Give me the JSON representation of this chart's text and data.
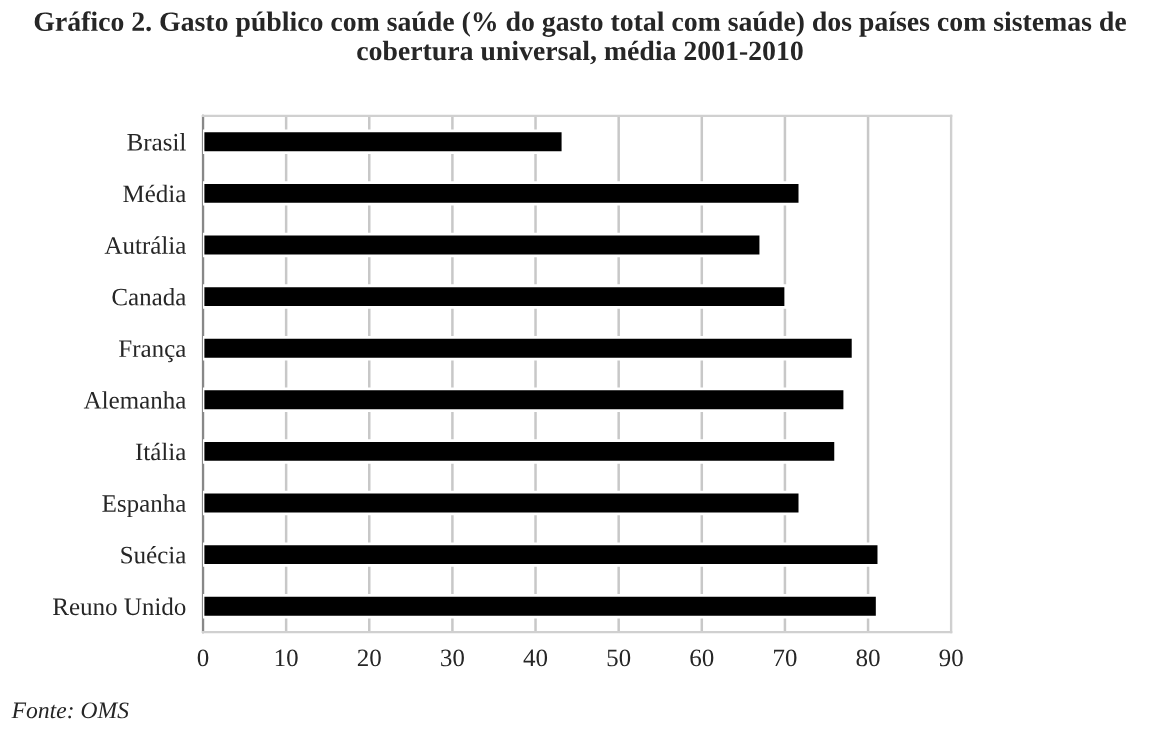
{
  "chart_data": {
    "type": "bar",
    "orientation": "horizontal",
    "title": "Gráfico 2. Gasto público com saúde (% do gasto total com saúde) dos países com sistemas de cobertura universal, média 2001-2010",
    "categories": [
      "Brasil",
      "Média",
      "Autrália",
      "Canada",
      "França",
      "Alemanha",
      "Itália",
      "Espanha",
      "Suécia",
      "Reuno Unido"
    ],
    "values": [
      43.3,
      71.8,
      67.1,
      70.1,
      78.2,
      77.2,
      76.1,
      71.8,
      81.3,
      81.1
    ],
    "color": "#000000",
    "xlim": [
      0,
      90
    ],
    "xticks": [
      0,
      10,
      20,
      30,
      40,
      50,
      60,
      70,
      80,
      90
    ],
    "grid": "x",
    "legend": false,
    "annotations": [
      "Fonte: OMS"
    ]
  }
}
